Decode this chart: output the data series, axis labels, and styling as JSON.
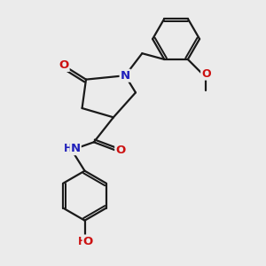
{
  "bg_color": "#ebebeb",
  "bond_color": "#1a1a1a",
  "bond_width": 1.6,
  "atom_colors": {
    "N": "#2020bb",
    "O": "#cc1111",
    "C": "#1a1a1a"
  },
  "font_size": 9.5
}
